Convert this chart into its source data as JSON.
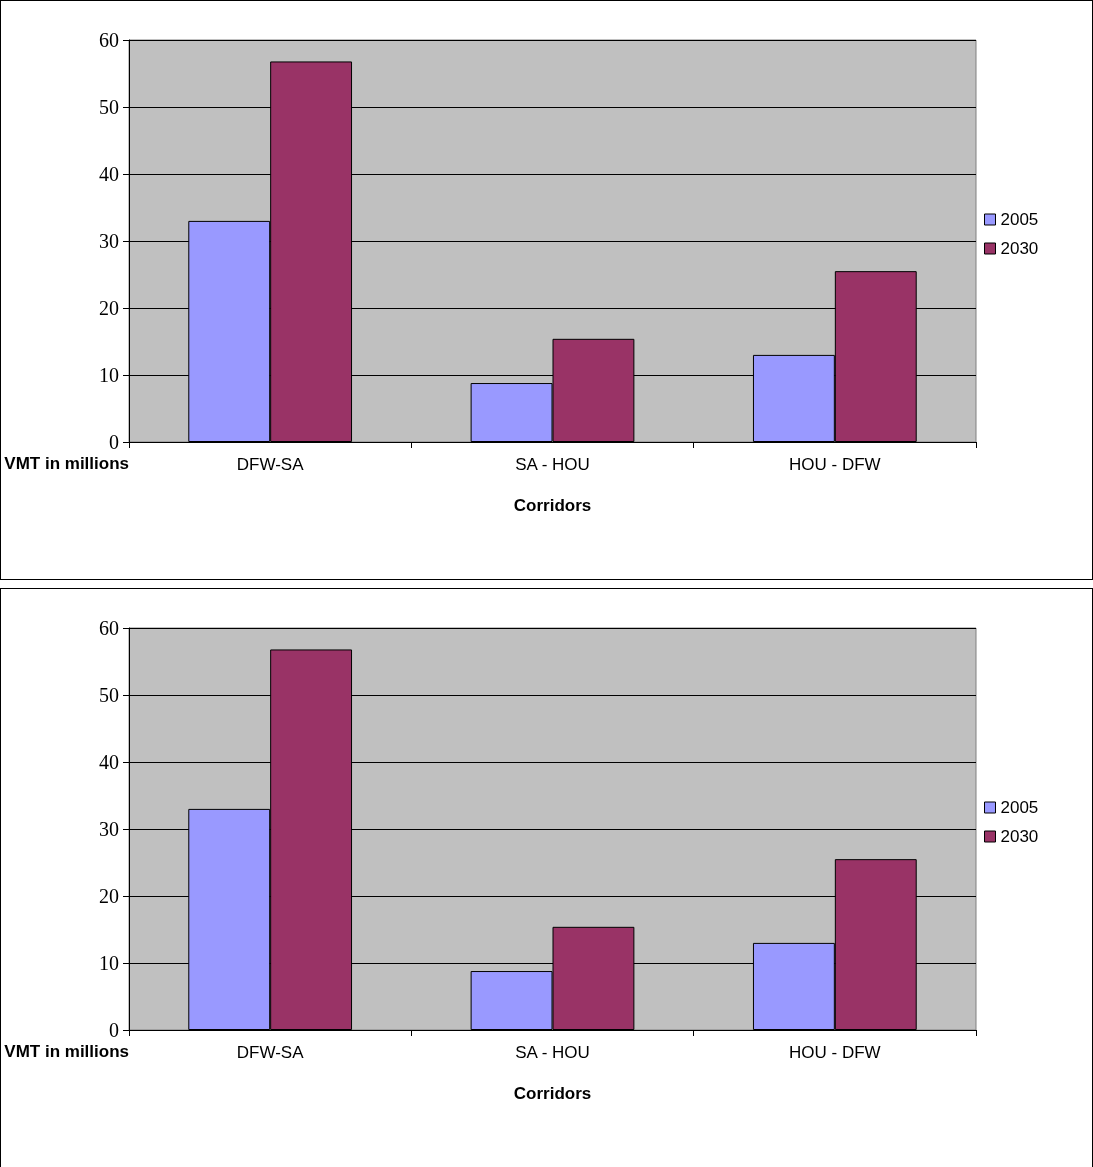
{
  "chart_data": [
    {
      "type": "bar",
      "xlabel": "Corridors",
      "ylabel": "VMT in millions",
      "categories": [
        "DFW-SA",
        "SA - HOU",
        "HOU - DFW"
      ],
      "series": [
        {
          "name": "2005",
          "color": "#9999ff",
          "values": [
            33,
            8.8,
            13
          ]
        },
        {
          "name": "2030",
          "color": "#993366",
          "values": [
            56.8,
            15.4,
            25.5
          ]
        }
      ],
      "ylim": [
        0,
        60
      ],
      "yticks": [
        0,
        10,
        20,
        30,
        40,
        50,
        60
      ],
      "grid": "y",
      "legend": "right"
    },
    {
      "type": "bar",
      "xlabel": "Corridors",
      "ylabel": "VMT in millions",
      "categories": [
        "DFW-SA",
        "SA - HOU",
        "HOU - DFW"
      ],
      "series": [
        {
          "name": "2005",
          "color": "#9999ff",
          "values": [
            33,
            8.8,
            13
          ]
        },
        {
          "name": "2030",
          "color": "#993366",
          "values": [
            56.8,
            15.4,
            25.5
          ]
        }
      ],
      "ylim": [
        0,
        60
      ],
      "yticks": [
        0,
        10,
        20,
        30,
        40,
        50,
        60
      ],
      "grid": "y",
      "legend": "right"
    }
  ]
}
